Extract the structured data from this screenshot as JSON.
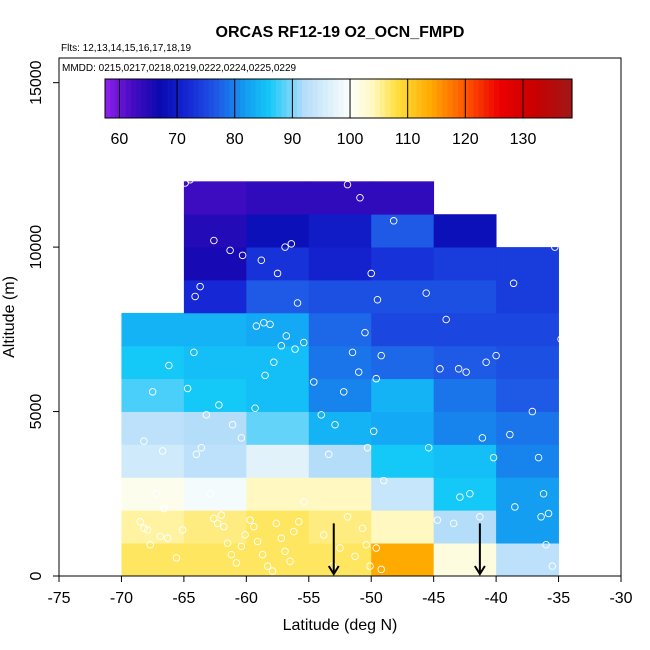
{
  "chart_data": {
    "type": "heatmap",
    "title": "ORCAS RF12-19 O2_OCN_FMPD",
    "subtitle_flights": "Flts: 12,13,14,15,16,17,18,19",
    "subtitle_dates": "MMDD: 0215,0217,0218,0219,0222,0224,0225,0229",
    "xlabel": "Latitude (deg N)",
    "ylabel": "Altitude (m)",
    "xlim": [
      -75,
      -30
    ],
    "ylim": [
      0,
      15750
    ],
    "x_ticks": [
      -75,
      -70,
      -65,
      -60,
      -55,
      -50,
      -45,
      -40,
      -35,
      -30
    ],
    "x_tick_labels": [
      "-75",
      "-70",
      "-65",
      "-60",
      "-55",
      "-50",
      "-45",
      "-40",
      "-35",
      "-30"
    ],
    "y_ticks": [
      0,
      5000,
      10000,
      15000
    ],
    "y_tick_labels": [
      "0",
      "5000",
      "10000",
      "15000"
    ],
    "colorbar": {
      "min": 57.5,
      "max": 138.5,
      "ticks": [
        60,
        70,
        80,
        90,
        100,
        110,
        120,
        130
      ],
      "tick_labels": [
        "60",
        "70",
        "80",
        "90",
        "100",
        "110",
        "120",
        "130"
      ],
      "stops": [
        {
          "v": 57.5,
          "c": "#9022ee"
        },
        {
          "v": 62,
          "c": "#4a0cc4"
        },
        {
          "v": 67,
          "c": "#0a0ab0"
        },
        {
          "v": 72,
          "c": "#1628d6"
        },
        {
          "v": 77,
          "c": "#1e5ae6"
        },
        {
          "v": 82,
          "c": "#139ef2"
        },
        {
          "v": 86,
          "c": "#14c8f8"
        },
        {
          "v": 92,
          "c": "#b4ddfa"
        },
        {
          "v": 100,
          "c": "#fcfffc"
        },
        {
          "v": 104,
          "c": "#fff8c0"
        },
        {
          "v": 108,
          "c": "#ffe040"
        },
        {
          "v": 114,
          "c": "#ffaa00"
        },
        {
          "v": 120,
          "c": "#ff5500"
        },
        {
          "v": 126,
          "c": "#ec0000"
        },
        {
          "v": 132,
          "c": "#c80000"
        },
        {
          "v": 138.5,
          "c": "#a01818"
        }
      ]
    },
    "bins": {
      "lat_edges": [
        -70,
        -65,
        -60,
        -55,
        -50,
        -45,
        -40,
        -35
      ],
      "alt_step": 1000
    },
    "cells": [
      {
        "lat": -70,
        "alt": 0,
        "v": 107
      },
      {
        "lat": -65,
        "alt": 0,
        "v": 107
      },
      {
        "lat": -60,
        "alt": 0,
        "v": 107
      },
      {
        "lat": -55,
        "alt": 0,
        "v": 107
      },
      {
        "lat": -50,
        "alt": 0,
        "v": 114
      },
      {
        "lat": -45,
        "alt": 0,
        "v": 102
      },
      {
        "lat": -40,
        "alt": 0,
        "v": 93
      },
      {
        "lat": -70,
        "alt": 1000,
        "v": 105
      },
      {
        "lat": -65,
        "alt": 1000,
        "v": 106
      },
      {
        "lat": -60,
        "alt": 1000,
        "v": 107
      },
      {
        "lat": -55,
        "alt": 1000,
        "v": 106
      },
      {
        "lat": -50,
        "alt": 1000,
        "v": 104
      },
      {
        "lat": -45,
        "alt": 1000,
        "v": 92
      },
      {
        "lat": -40,
        "alt": 1000,
        "v": 82
      },
      {
        "lat": -70,
        "alt": 2000,
        "v": 101
      },
      {
        "lat": -65,
        "alt": 2000,
        "v": 99
      },
      {
        "lat": -60,
        "alt": 2000,
        "v": 104
      },
      {
        "lat": -55,
        "alt": 2000,
        "v": 104
      },
      {
        "lat": -50,
        "alt": 2000,
        "v": 94
      },
      {
        "lat": -45,
        "alt": 2000,
        "v": 86
      },
      {
        "lat": -40,
        "alt": 2000,
        "v": 82
      },
      {
        "lat": -70,
        "alt": 3000,
        "v": 95
      },
      {
        "lat": -65,
        "alt": 3000,
        "v": 93
      },
      {
        "lat": -60,
        "alt": 3000,
        "v": 97
      },
      {
        "lat": -55,
        "alt": 3000,
        "v": 92
      },
      {
        "lat": -50,
        "alt": 3000,
        "v": 86
      },
      {
        "lat": -45,
        "alt": 3000,
        "v": 85
      },
      {
        "lat": -40,
        "alt": 3000,
        "v": 80
      },
      {
        "lat": -70,
        "alt": 4000,
        "v": 93
      },
      {
        "lat": -65,
        "alt": 4000,
        "v": 92
      },
      {
        "lat": -60,
        "alt": 4000,
        "v": 89
      },
      {
        "lat": -55,
        "alt": 4000,
        "v": 84
      },
      {
        "lat": -50,
        "alt": 4000,
        "v": 83
      },
      {
        "lat": -45,
        "alt": 4000,
        "v": 80
      },
      {
        "lat": -40,
        "alt": 4000,
        "v": 79
      },
      {
        "lat": -70,
        "alt": 5000,
        "v": 88
      },
      {
        "lat": -65,
        "alt": 5000,
        "v": 86
      },
      {
        "lat": -60,
        "alt": 5000,
        "v": 85
      },
      {
        "lat": -55,
        "alt": 5000,
        "v": 80
      },
      {
        "lat": -50,
        "alt": 5000,
        "v": 84
      },
      {
        "lat": -45,
        "alt": 5000,
        "v": 79
      },
      {
        "lat": -40,
        "alt": 5000,
        "v": 77
      },
      {
        "lat": -70,
        "alt": 6000,
        "v": 86
      },
      {
        "lat": -65,
        "alt": 6000,
        "v": 85
      },
      {
        "lat": -60,
        "alt": 6000,
        "v": 85
      },
      {
        "lat": -55,
        "alt": 6000,
        "v": 79
      },
      {
        "lat": -50,
        "alt": 6000,
        "v": 78
      },
      {
        "lat": -45,
        "alt": 6000,
        "v": 77
      },
      {
        "lat": -40,
        "alt": 6000,
        "v": 76
      },
      {
        "lat": -70,
        "alt": 7000,
        "v": 84
      },
      {
        "lat": -65,
        "alt": 7000,
        "v": 84
      },
      {
        "lat": -60,
        "alt": 7000,
        "v": 83
      },
      {
        "lat": -55,
        "alt": 7000,
        "v": 78
      },
      {
        "lat": -50,
        "alt": 7000,
        "v": 75
      },
      {
        "lat": -45,
        "alt": 7000,
        "v": 75
      },
      {
        "lat": -40,
        "alt": 7000,
        "v": 75
      },
      {
        "lat": -65,
        "alt": 8000,
        "v": 72
      },
      {
        "lat": -60,
        "alt": 8000,
        "v": 77
      },
      {
        "lat": -55,
        "alt": 8000,
        "v": 76
      },
      {
        "lat": -50,
        "alt": 8000,
        "v": 76
      },
      {
        "lat": -45,
        "alt": 8000,
        "v": 76
      },
      {
        "lat": -40,
        "alt": 8000,
        "v": 74
      },
      {
        "lat": -65,
        "alt": 9000,
        "v": 66
      },
      {
        "lat": -60,
        "alt": 9000,
        "v": 73
      },
      {
        "lat": -55,
        "alt": 9000,
        "v": 71
      },
      {
        "lat": -50,
        "alt": 9000,
        "v": 73
      },
      {
        "lat": -45,
        "alt": 9000,
        "v": 74
      },
      {
        "lat": -40,
        "alt": 9000,
        "v": 74
      },
      {
        "lat": -65,
        "alt": 10000,
        "v": 65
      },
      {
        "lat": -60,
        "alt": 10000,
        "v": 68
      },
      {
        "lat": -55,
        "alt": 10000,
        "v": 70
      },
      {
        "lat": -50,
        "alt": 10000,
        "v": 77
      },
      {
        "lat": -45,
        "alt": 10000,
        "v": 68
      },
      {
        "lat": -65,
        "alt": 11000,
        "v": 63
      },
      {
        "lat": -60,
        "alt": 11000,
        "v": 64
      },
      {
        "lat": -55,
        "alt": 11000,
        "v": 64
      },
      {
        "lat": -50,
        "alt": 11000,
        "v": 64
      }
    ],
    "observations": [
      [
        -68.5,
        1650
      ],
      [
        -68.2,
        1450
      ],
      [
        -67.9,
        1400
      ],
      [
        -67.7,
        950
      ],
      [
        -67.2,
        2500
      ],
      [
        -66.9,
        1200
      ],
      [
        -66.6,
        2050
      ],
      [
        -66.3,
        1150
      ],
      [
        -67.5,
        5600
      ],
      [
        -68.2,
        4100
      ],
      [
        -66.7,
        3800
      ],
      [
        -66.2,
        6400
      ],
      [
        -65.6,
        550
      ],
      [
        -65.1,
        1400
      ],
      [
        -64.7,
        5700
      ],
      [
        -64.2,
        6800
      ],
      [
        -64.0,
        3700
      ],
      [
        -63.6,
        3900
      ],
      [
        -63.2,
        4900
      ],
      [
        -62.9,
        2500
      ],
      [
        -62.6,
        1750
      ],
      [
        -62.3,
        1600
      ],
      [
        -62.0,
        1850
      ],
      [
        -61.8,
        1500
      ],
      [
        -61.5,
        1000
      ],
      [
        -61.2,
        650
      ],
      [
        -60.8,
        400
      ],
      [
        -60.4,
        900
      ],
      [
        -60.1,
        1250
      ],
      [
        -59.7,
        1700
      ],
      [
        -59.4,
        1500
      ],
      [
        -59.1,
        1050
      ],
      [
        -58.7,
        650
      ],
      [
        -58.3,
        300
      ],
      [
        -57.9,
        150
      ],
      [
        -57.6,
        1600
      ],
      [
        -57.2,
        1150
      ],
      [
        -56.9,
        750
      ],
      [
        -56.5,
        450
      ],
      [
        -56.2,
        1350
      ],
      [
        -55.8,
        1650
      ],
      [
        -55.4,
        2250
      ],
      [
        -62.2,
        5200
      ],
      [
        -61.1,
        4600
      ],
      [
        -60.4,
        4200
      ],
      [
        -59.3,
        5100
      ],
      [
        -58.5,
        6100
      ],
      [
        -57.8,
        6500
      ],
      [
        -57.2,
        7000
      ],
      [
        -56.8,
        7300
      ],
      [
        -56.1,
        6900
      ],
      [
        -55.4,
        7100
      ],
      [
        -54.6,
        5900
      ],
      [
        -62.6,
        10200
      ],
      [
        -61.3,
        9900
      ],
      [
        -60.3,
        9750
      ],
      [
        -59.7,
        12400
      ],
      [
        -58.8,
        9600
      ],
      [
        -57.5,
        9200
      ],
      [
        -56.9,
        10000
      ],
      [
        -56.4,
        10100
      ],
      [
        -55.9,
        8300
      ],
      [
        -64.1,
        8500
      ],
      [
        -63.7,
        8800
      ],
      [
        -64.9,
        11950
      ],
      [
        -64.5,
        12050
      ],
      [
        -59.2,
        7600
      ],
      [
        -58.6,
        7700
      ],
      [
        -58.1,
        7650
      ],
      [
        -53.8,
        1250
      ],
      [
        -53.1,
        300
      ],
      [
        -52.5,
        850
      ],
      [
        -51.9,
        1800
      ],
      [
        -51.3,
        600
      ],
      [
        -50.7,
        1450
      ],
      [
        -50.4,
        950
      ],
      [
        -50.1,
        300
      ],
      [
        -49.6,
        850
      ],
      [
        -49.2,
        200
      ],
      [
        -54.0,
        4900
      ],
      [
        -53.4,
        3700
      ],
      [
        -52.9,
        4600
      ],
      [
        -52.2,
        5600
      ],
      [
        -51.5,
        6800
      ],
      [
        -51.0,
        6200
      ],
      [
        -50.5,
        7400
      ],
      [
        -49.6,
        6000
      ],
      [
        -49.2,
        6700
      ],
      [
        -49.8,
        4400
      ],
      [
        -50.3,
        3900
      ],
      [
        -49.0,
        2900
      ],
      [
        -51.9,
        11900
      ],
      [
        -50.9,
        11500
      ],
      [
        -50.0,
        9200
      ],
      [
        -49.5,
        8400
      ],
      [
        -48.2,
        10800
      ],
      [
        -45.6,
        8600
      ],
      [
        -44.0,
        7800
      ],
      [
        -44.5,
        6300
      ],
      [
        -43.0,
        6300
      ],
      [
        -42.4,
        6200
      ],
      [
        -40.8,
        6500
      ],
      [
        -40.0,
        6700
      ],
      [
        -41.1,
        4200
      ],
      [
        -40.2,
        3600
      ],
      [
        -42.9,
        2400
      ],
      [
        -42.1,
        2500
      ],
      [
        -41.3,
        1800
      ],
      [
        -45.4,
        3900
      ],
      [
        -44.7,
        1700
      ],
      [
        -43.4,
        1600
      ],
      [
        -38.6,
        8900
      ],
      [
        -37.1,
        5000
      ],
      [
        -36.2,
        2500
      ],
      [
        -36.4,
        1800
      ],
      [
        -35.8,
        1900
      ],
      [
        -38.9,
        4300
      ],
      [
        -36.6,
        3600
      ],
      [
        -35.5,
        300
      ],
      [
        -36.0,
        950
      ],
      [
        -35.3,
        10000
      ],
      [
        -34.8,
        7200
      ],
      [
        -38.5,
        2100
      ]
    ],
    "markers": [
      {
        "lat": -53.0,
        "alt": 600,
        "label": "arrow"
      },
      {
        "lat": -41.3,
        "alt": 600,
        "label": "arrow"
      }
    ]
  }
}
